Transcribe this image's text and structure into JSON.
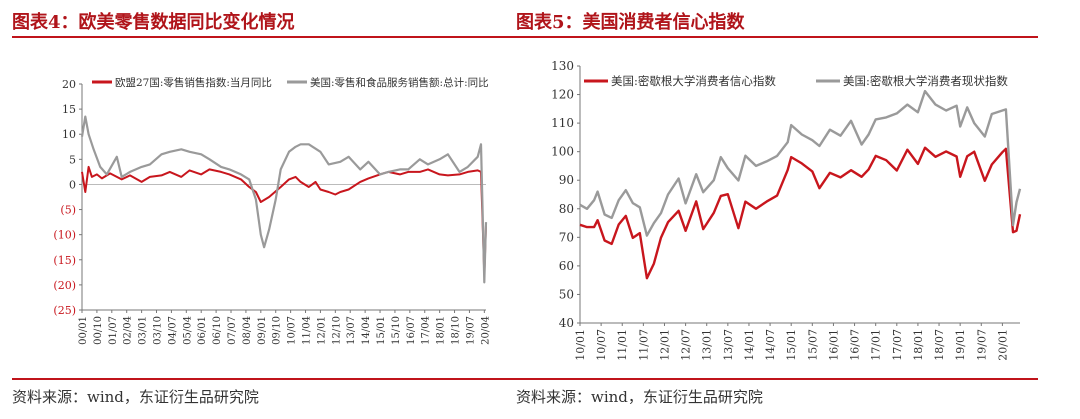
{
  "panels": {
    "left": {
      "title": "图表4：欧美零售数据同比变化情况",
      "source": "资料来源：wind，东证衍生品研究院"
    },
    "right": {
      "title": "图表5：美国消费者信心指数",
      "source": "资料来源：wind，东证衍生品研究院"
    }
  },
  "colors": {
    "red": "#c8161d",
    "gray": "#9a9a9a",
    "negative_label": "#c8161d",
    "title": "#b0141a"
  },
  "chart_data": [
    {
      "type": "line",
      "title": "",
      "xlabel": "",
      "ylabel": "",
      "ylim": [
        -25,
        20
      ],
      "yticks": [
        20,
        15,
        10,
        5,
        0,
        -5,
        -10,
        -15,
        -20,
        -25
      ],
      "ytick_labels": [
        "20",
        "15",
        "10",
        "5",
        "0",
        "(5)",
        "(10)",
        "(15)",
        "(20)",
        "(25)"
      ],
      "x_start": "2000-01",
      "x_end": "2020-05",
      "xticks": [
        "00/01",
        "00/10",
        "01/07",
        "02/04",
        "03/01",
        "03/10",
        "04/07",
        "05/04",
        "06/01",
        "06/10",
        "07/07",
        "08/04",
        "09/01",
        "09/10",
        "10/07",
        "11/04",
        "12/01",
        "12/10",
        "13/07",
        "14/04",
        "15/01",
        "15/10",
        "16/07",
        "17/04",
        "18/01",
        "18/10",
        "19/07",
        "20/04"
      ],
      "legend": "top",
      "series": [
        {
          "name": "欧盟27国:零售销售指数:当月同比",
          "color": "#c8161d",
          "points": [
            [
              "2000-01",
              2.5
            ],
            [
              "2000-03",
              -1.5
            ],
            [
              "2000-05",
              3.5
            ],
            [
              "2000-07",
              1.5
            ],
            [
              "2000-10",
              2.0
            ],
            [
              "2001-01",
              1.2
            ],
            [
              "2001-06",
              2.2
            ],
            [
              "2002-01",
              1.0
            ],
            [
              "2002-06",
              1.8
            ],
            [
              "2003-01",
              0.5
            ],
            [
              "2003-06",
              1.5
            ],
            [
              "2004-01",
              1.8
            ],
            [
              "2004-06",
              2.5
            ],
            [
              "2005-01",
              1.5
            ],
            [
              "2005-06",
              2.8
            ],
            [
              "2006-01",
              2.0
            ],
            [
              "2006-06",
              3.0
            ],
            [
              "2007-01",
              2.5
            ],
            [
              "2007-06",
              2.0
            ],
            [
              "2008-01",
              1.0
            ],
            [
              "2008-06",
              -0.5
            ],
            [
              "2008-10",
              -1.5
            ],
            [
              "2009-01",
              -3.5
            ],
            [
              "2009-06",
              -2.5
            ],
            [
              "2010-01",
              -0.5
            ],
            [
              "2010-06",
              1.0
            ],
            [
              "2010-10",
              1.5
            ],
            [
              "2011-01",
              0.5
            ],
            [
              "2011-06",
              -0.5
            ],
            [
              "2011-10",
              0.5
            ],
            [
              "2012-01",
              -1.0
            ],
            [
              "2012-06",
              -1.5
            ],
            [
              "2012-10",
              -2.0
            ],
            [
              "2013-01",
              -1.5
            ],
            [
              "2013-06",
              -1.0
            ],
            [
              "2014-01",
              0.5
            ],
            [
              "2014-06",
              1.2
            ],
            [
              "2015-01",
              2.0
            ],
            [
              "2015-06",
              2.5
            ],
            [
              "2016-01",
              2.0
            ],
            [
              "2016-06",
              2.5
            ],
            [
              "2017-01",
              2.5
            ],
            [
              "2017-06",
              3.0
            ],
            [
              "2018-01",
              2.0
            ],
            [
              "2018-06",
              1.8
            ],
            [
              "2019-01",
              2.0
            ],
            [
              "2019-06",
              2.5
            ],
            [
              "2019-12",
              2.8
            ],
            [
              "2020-02",
              2.5
            ],
            [
              "2020-03",
              -8.0
            ],
            [
              "2020-04",
              -18.0
            ],
            [
              "2020-05",
              -8.0
            ]
          ]
        },
        {
          "name": "美国:零售和食品服务销售额:总计:同比",
          "color": "#9a9a9a",
          "points": [
            [
              "2000-01",
              9.5
            ],
            [
              "2000-03",
              13.5
            ],
            [
              "2000-05",
              10.0
            ],
            [
              "2000-08",
              7.0
            ],
            [
              "2000-12",
              3.5
            ],
            [
              "2001-04",
              2.0
            ],
            [
              "2001-10",
              5.5
            ],
            [
              "2002-01",
              1.5
            ],
            [
              "2002-06",
              2.5
            ],
            [
              "2003-01",
              3.5
            ],
            [
              "2003-06",
              4.0
            ],
            [
              "2004-01",
              6.0
            ],
            [
              "2004-06",
              6.5
            ],
            [
              "2005-01",
              7.0
            ],
            [
              "2005-06",
              6.5
            ],
            [
              "2006-01",
              6.0
            ],
            [
              "2006-06",
              5.0
            ],
            [
              "2007-01",
              3.5
            ],
            [
              "2007-06",
              3.0
            ],
            [
              "2008-01",
              2.0
            ],
            [
              "2008-06",
              1.0
            ],
            [
              "2008-10",
              -3.0
            ],
            [
              "2009-01",
              -10.0
            ],
            [
              "2009-03",
              -12.5
            ],
            [
              "2009-06",
              -9.0
            ],
            [
              "2009-10",
              -3.0
            ],
            [
              "2010-01",
              3.0
            ],
            [
              "2010-06",
              6.5
            ],
            [
              "2010-10",
              7.5
            ],
            [
              "2011-01",
              8.0
            ],
            [
              "2011-06",
              8.0
            ],
            [
              "2012-01",
              6.5
            ],
            [
              "2012-06",
              4.0
            ],
            [
              "2013-01",
              4.5
            ],
            [
              "2013-06",
              5.5
            ],
            [
              "2014-01",
              3.0
            ],
            [
              "2014-06",
              4.5
            ],
            [
              "2015-01",
              2.0
            ],
            [
              "2015-06",
              2.5
            ],
            [
              "2016-01",
              3.0
            ],
            [
              "2016-06",
              3.0
            ],
            [
              "2017-01",
              5.0
            ],
            [
              "2017-06",
              4.0
            ],
            [
              "2018-01",
              5.0
            ],
            [
              "2018-06",
              6.0
            ],
            [
              "2019-01",
              2.5
            ],
            [
              "2019-06",
              3.5
            ],
            [
              "2019-12",
              5.5
            ],
            [
              "2020-02",
              8.0
            ],
            [
              "2020-03",
              -6.0
            ],
            [
              "2020-04",
              -19.5
            ],
            [
              "2020-05",
              -7.5
            ]
          ]
        }
      ]
    },
    {
      "type": "line",
      "title": "",
      "xlabel": "",
      "ylabel": "",
      "ylim": [
        40,
        130
      ],
      "yticks": [
        130,
        120,
        110,
        100,
        90,
        80,
        70,
        60,
        50,
        40
      ],
      "x_start": "2010-01",
      "x_end": "2020-06",
      "xticks": [
        "10/01",
        "10/07",
        "11/01",
        "11/07",
        "12/01",
        "12/07",
        "13/01",
        "13/07",
        "14/01",
        "14/07",
        "15/01",
        "15/07",
        "16/01",
        "16/07",
        "17/01",
        "17/07",
        "18/01",
        "18/07",
        "19/01",
        "19/07",
        "20/01"
      ],
      "legend": "top",
      "series": [
        {
          "name": "美国:密歇根大学消费者信心指数",
          "color": "#c8161d",
          "points": [
            [
              "2010-01",
              74.4
            ],
            [
              "2010-03",
              73.6
            ],
            [
              "2010-05",
              73.6
            ],
            [
              "2010-06",
              76.0
            ],
            [
              "2010-08",
              68.9
            ],
            [
              "2010-10",
              67.7
            ],
            [
              "2010-12",
              74.5
            ],
            [
              "2011-02",
              77.5
            ],
            [
              "2011-04",
              69.8
            ],
            [
              "2011-06",
              71.5
            ],
            [
              "2011-08",
              55.7
            ],
            [
              "2011-10",
              60.8
            ],
            [
              "2011-12",
              69.9
            ],
            [
              "2012-02",
              75.3
            ],
            [
              "2012-05",
              79.3
            ],
            [
              "2012-07",
              72.3
            ],
            [
              "2012-10",
              82.6
            ],
            [
              "2012-12",
              72.9
            ],
            [
              "2013-03",
              78.6
            ],
            [
              "2013-05",
              84.5
            ],
            [
              "2013-07",
              85.1
            ],
            [
              "2013-10",
              73.2
            ],
            [
              "2013-12",
              82.5
            ],
            [
              "2014-03",
              80.0
            ],
            [
              "2014-06",
              82.5
            ],
            [
              "2014-09",
              84.6
            ],
            [
              "2014-12",
              93.6
            ],
            [
              "2015-01",
              98.1
            ],
            [
              "2015-04",
              95.9
            ],
            [
              "2015-07",
              93.1
            ],
            [
              "2015-09",
              87.2
            ],
            [
              "2015-12",
              92.6
            ],
            [
              "2016-03",
              91.0
            ],
            [
              "2016-06",
              93.5
            ],
            [
              "2016-09",
              91.2
            ],
            [
              "2016-11",
              93.8
            ],
            [
              "2017-01",
              98.5
            ],
            [
              "2017-04",
              97.0
            ],
            [
              "2017-07",
              93.4
            ],
            [
              "2017-10",
              100.7
            ],
            [
              "2018-01",
              95.7
            ],
            [
              "2018-03",
              101.4
            ],
            [
              "2018-06",
              98.2
            ],
            [
              "2018-09",
              100.1
            ],
            [
              "2018-12",
              98.3
            ],
            [
              "2019-01",
              91.2
            ],
            [
              "2019-03",
              98.4
            ],
            [
              "2019-05",
              100.0
            ],
            [
              "2019-08",
              89.8
            ],
            [
              "2019-10",
              95.5
            ],
            [
              "2020-01",
              99.8
            ],
            [
              "2020-02",
              101.0
            ],
            [
              "2020-04",
              71.8
            ],
            [
              "2020-05",
              72.3
            ],
            [
              "2020-06",
              78.1
            ]
          ]
        },
        {
          "name": "美国:密歇根大学消费者现状指数",
          "color": "#9a9a9a",
          "points": [
            [
              "2010-01",
              81.4
            ],
            [
              "2010-03",
              80.0
            ],
            [
              "2010-05",
              83.0
            ],
            [
              "2010-06",
              86.0
            ],
            [
              "2010-08",
              78.0
            ],
            [
              "2010-10",
              76.8
            ],
            [
              "2010-12",
              83.0
            ],
            [
              "2011-02",
              86.5
            ],
            [
              "2011-04",
              82.0
            ],
            [
              "2011-06",
              80.5
            ],
            [
              "2011-08",
              70.6
            ],
            [
              "2011-10",
              75.0
            ],
            [
              "2011-12",
              78.5
            ],
            [
              "2012-02",
              85.0
            ],
            [
              "2012-05",
              90.6
            ],
            [
              "2012-07",
              81.9
            ],
            [
              "2012-10",
              92.1
            ],
            [
              "2012-12",
              85.8
            ],
            [
              "2013-03",
              90.0
            ],
            [
              "2013-05",
              98.1
            ],
            [
              "2013-07",
              94.2
            ],
            [
              "2013-10",
              89.9
            ],
            [
              "2013-12",
              98.6
            ],
            [
              "2014-03",
              95.0
            ],
            [
              "2014-06",
              96.6
            ],
            [
              "2014-09",
              98.5
            ],
            [
              "2014-12",
              103.3
            ],
            [
              "2015-01",
              109.3
            ],
            [
              "2015-04",
              106.0
            ],
            [
              "2015-07",
              104.0
            ],
            [
              "2015-09",
              102.0
            ],
            [
              "2015-12",
              107.7
            ],
            [
              "2016-03",
              105.6
            ],
            [
              "2016-06",
              110.8
            ],
            [
              "2016-09",
              102.5
            ],
            [
              "2016-11",
              106.0
            ],
            [
              "2017-01",
              111.3
            ],
            [
              "2017-04",
              112.0
            ],
            [
              "2017-07",
              113.4
            ],
            [
              "2017-10",
              116.5
            ],
            [
              "2018-01",
              113.8
            ],
            [
              "2018-03",
              121.2
            ],
            [
              "2018-06",
              116.5
            ],
            [
              "2018-09",
              114.4
            ],
            [
              "2018-12",
              116.1
            ],
            [
              "2019-01",
              108.8
            ],
            [
              "2019-03",
              115.5
            ],
            [
              "2019-05",
              110.0
            ],
            [
              "2019-08",
              105.3
            ],
            [
              "2019-10",
              113.2
            ],
            [
              "2020-01",
              114.4
            ],
            [
              "2020-02",
              114.8
            ],
            [
              "2020-04",
              74.3
            ],
            [
              "2020-05",
              82.3
            ],
            [
              "2020-06",
              87.0
            ]
          ]
        }
      ]
    }
  ]
}
